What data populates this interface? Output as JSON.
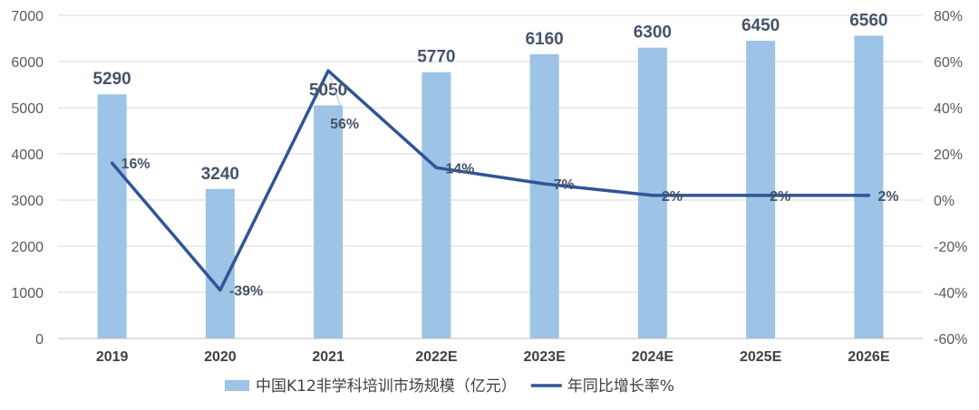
{
  "chart_data": {
    "type": "bar",
    "categories": [
      "2019",
      "2020",
      "2021",
      "2022E",
      "2023E",
      "2024E",
      "2025E",
      "2026E"
    ],
    "series": [
      {
        "name": "中国K12非学科培训市场规模（亿元）",
        "type": "bar",
        "axis": "left",
        "color": "#9DC3E6",
        "values": [
          5290,
          3240,
          5050,
          5770,
          6160,
          6300,
          6450,
          6560
        ],
        "labels": [
          "5290",
          "3240",
          "5050",
          "5770",
          "6160",
          "6300",
          "6450",
          "6560"
        ]
      },
      {
        "name": "年同比增长率%",
        "type": "line",
        "axis": "right",
        "color": "#2F5597",
        "values": [
          16,
          -39,
          56,
          14,
          7,
          2,
          2,
          2
        ],
        "labels": [
          "16%",
          "-39%",
          "56%",
          "14%",
          "7%",
          "2%",
          "2%",
          "2%"
        ]
      }
    ],
    "y_left": {
      "min": 0,
      "max": 7000,
      "ticks": [
        0,
        1000,
        2000,
        3000,
        4000,
        5000,
        6000,
        7000
      ],
      "tick_labels": [
        "0",
        "1000",
        "2000",
        "3000",
        "4000",
        "5000",
        "6000",
        "7000"
      ]
    },
    "y_right": {
      "min": -60,
      "max": 80,
      "ticks": [
        -60,
        -40,
        -20,
        0,
        20,
        40,
        60,
        80
      ],
      "tick_labels": [
        "-60%",
        "-40%",
        "-20%",
        "0%",
        "20%",
        "40%",
        "60%",
        "80%"
      ]
    },
    "grid": true,
    "legend_position": "bottom",
    "title": "",
    "xlabel": "",
    "ylabel": ""
  }
}
